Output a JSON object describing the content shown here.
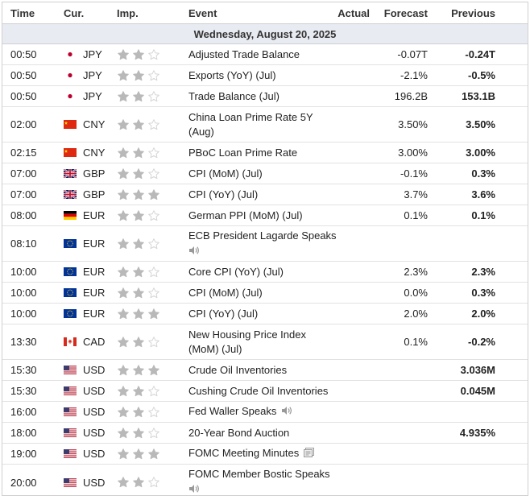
{
  "columns": {
    "time": "Time",
    "currency": "Cur.",
    "importance": "Imp.",
    "event": "Event",
    "actual": "Actual",
    "forecast": "Forecast",
    "previous": "Previous"
  },
  "day": "Wednesday, August 20, 2025",
  "colors": {
    "star_filled": "#b9b9b9",
    "star_empty": "#d4d4d4",
    "day_bg": "#e8ebf1"
  },
  "rows": [
    {
      "time": "00:50",
      "flag": "jp",
      "currency": "JPY",
      "stars": 2,
      "event": "Adjusted Trade Balance",
      "icon": "",
      "actual": "",
      "forecast": "-0.07T",
      "previous": "-0.24T"
    },
    {
      "time": "00:50",
      "flag": "jp",
      "currency": "JPY",
      "stars": 2,
      "event": "Exports (YoY) (Jul)",
      "icon": "",
      "actual": "",
      "forecast": "-2.1%",
      "previous": "-0.5%"
    },
    {
      "time": "00:50",
      "flag": "jp",
      "currency": "JPY",
      "stars": 2,
      "event": "Trade Balance (Jul)",
      "icon": "",
      "actual": "",
      "forecast": "196.2B",
      "previous": "153.1B"
    },
    {
      "time": "02:00",
      "flag": "cn",
      "currency": "CNY",
      "stars": 2,
      "event": "China Loan Prime Rate 5Y (Aug)",
      "icon": "",
      "actual": "",
      "forecast": "3.50%",
      "previous": "3.50%"
    },
    {
      "time": "02:15",
      "flag": "cn",
      "currency": "CNY",
      "stars": 2,
      "event": "PBoC Loan Prime Rate",
      "icon": "",
      "actual": "",
      "forecast": "3.00%",
      "previous": "3.00%"
    },
    {
      "time": "07:00",
      "flag": "gb",
      "currency": "GBP",
      "stars": 2,
      "event": "CPI (MoM) (Jul)",
      "icon": "",
      "actual": "",
      "forecast": "-0.1%",
      "previous": "0.3%"
    },
    {
      "time": "07:00",
      "flag": "gb",
      "currency": "GBP",
      "stars": 3,
      "event": "CPI (YoY) (Jul)",
      "icon": "",
      "actual": "",
      "forecast": "3.7%",
      "previous": "3.6%"
    },
    {
      "time": "08:00",
      "flag": "de",
      "currency": "EUR",
      "stars": 2,
      "event": "German PPI (MoM) (Jul)",
      "icon": "",
      "actual": "",
      "forecast": "0.1%",
      "previous": "0.1%"
    },
    {
      "time": "08:10",
      "flag": "eu",
      "currency": "EUR",
      "stars": 2,
      "event": "ECB President Lagarde Speaks",
      "icon": "speaker-below",
      "actual": "",
      "forecast": "",
      "previous": ""
    },
    {
      "time": "10:00",
      "flag": "eu",
      "currency": "EUR",
      "stars": 2,
      "event": "Core CPI (YoY) (Jul)",
      "icon": "",
      "actual": "",
      "forecast": "2.3%",
      "previous": "2.3%"
    },
    {
      "time": "10:00",
      "flag": "eu",
      "currency": "EUR",
      "stars": 2,
      "event": "CPI (MoM) (Jul)",
      "icon": "",
      "actual": "",
      "forecast": "0.0%",
      "previous": "0.3%"
    },
    {
      "time": "10:00",
      "flag": "eu",
      "currency": "EUR",
      "stars": 3,
      "event": "CPI (YoY) (Jul)",
      "icon": "",
      "actual": "",
      "forecast": "2.0%",
      "previous": "2.0%"
    },
    {
      "time": "13:30",
      "flag": "ca",
      "currency": "CAD",
      "stars": 2,
      "event": "New Housing Price Index (MoM) (Jul)",
      "icon": "",
      "actual": "",
      "forecast": "0.1%",
      "previous": "-0.2%"
    },
    {
      "time": "15:30",
      "flag": "us",
      "currency": "USD",
      "stars": 3,
      "event": "Crude Oil Inventories",
      "icon": "",
      "actual": "",
      "forecast": "",
      "previous": "3.036M"
    },
    {
      "time": "15:30",
      "flag": "us",
      "currency": "USD",
      "stars": 2,
      "event": "Cushing Crude Oil Inventories",
      "icon": "",
      "actual": "",
      "forecast": "",
      "previous": "0.045M"
    },
    {
      "time": "16:00",
      "flag": "us",
      "currency": "USD",
      "stars": 2,
      "event": "Fed Waller Speaks",
      "icon": "speaker-inline",
      "actual": "",
      "forecast": "",
      "previous": ""
    },
    {
      "time": "18:00",
      "flag": "us",
      "currency": "USD",
      "stars": 2,
      "event": "20-Year Bond Auction",
      "icon": "",
      "actual": "",
      "forecast": "",
      "previous": "4.935%"
    },
    {
      "time": "19:00",
      "flag": "us",
      "currency": "USD",
      "stars": 3,
      "event": "FOMC Meeting Minutes",
      "icon": "document-inline",
      "actual": "",
      "forecast": "",
      "previous": ""
    },
    {
      "time": "20:00",
      "flag": "us",
      "currency": "USD",
      "stars": 2,
      "event": "FOMC Member Bostic Speaks",
      "icon": "speaker-below",
      "actual": "",
      "forecast": "",
      "previous": ""
    }
  ]
}
